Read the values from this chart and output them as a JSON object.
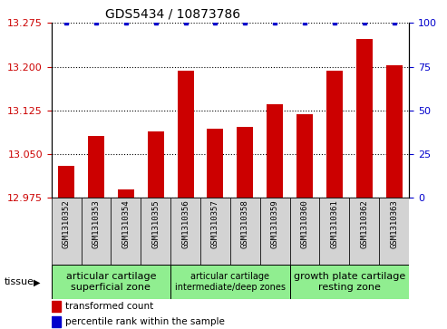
{
  "title": "GDS5434 / 10873786",
  "samples": [
    "GSM1310352",
    "GSM1310353",
    "GSM1310354",
    "GSM1310355",
    "GSM1310356",
    "GSM1310357",
    "GSM1310358",
    "GSM1310359",
    "GSM1310360",
    "GSM1310361",
    "GSM1310362",
    "GSM1310363"
  ],
  "bar_values": [
    13.03,
    13.08,
    12.988,
    13.088,
    13.193,
    13.093,
    13.097,
    13.135,
    13.118,
    13.193,
    13.248,
    13.202
  ],
  "percentile_values": [
    100,
    100,
    100,
    100,
    100,
    100,
    100,
    100,
    100,
    100,
    100,
    100
  ],
  "bar_color": "#cc0000",
  "percentile_color": "#0000cc",
  "ylim_left": [
    12.975,
    13.275
  ],
  "ylim_right": [
    0,
    100
  ],
  "yticks_left": [
    12.975,
    13.05,
    13.125,
    13.2,
    13.275
  ],
  "yticks_right": [
    0,
    25,
    50,
    75,
    100
  ],
  "group_starts": [
    0,
    4,
    8
  ],
  "group_ends": [
    3,
    7,
    11
  ],
  "group_labels": [
    "articular cartilage\nsuperficial zone",
    "articular cartilage\nintermediate/deep zones",
    "growth plate cartilage\nresting zone"
  ],
  "group_font_sizes": [
    8,
    7,
    8
  ],
  "group_color": "#90EE90",
  "sample_box_color": "#d3d3d3",
  "tissue_label": "tissue",
  "legend_bar_label": "transformed count",
  "legend_pct_label": "percentile rank within the sample",
  "tick_label_color_left": "#cc0000",
  "tick_label_color_right": "#0000cc",
  "title_fontsize": 10,
  "sample_fontsize": 6.5,
  "legend_fontsize": 7.5
}
